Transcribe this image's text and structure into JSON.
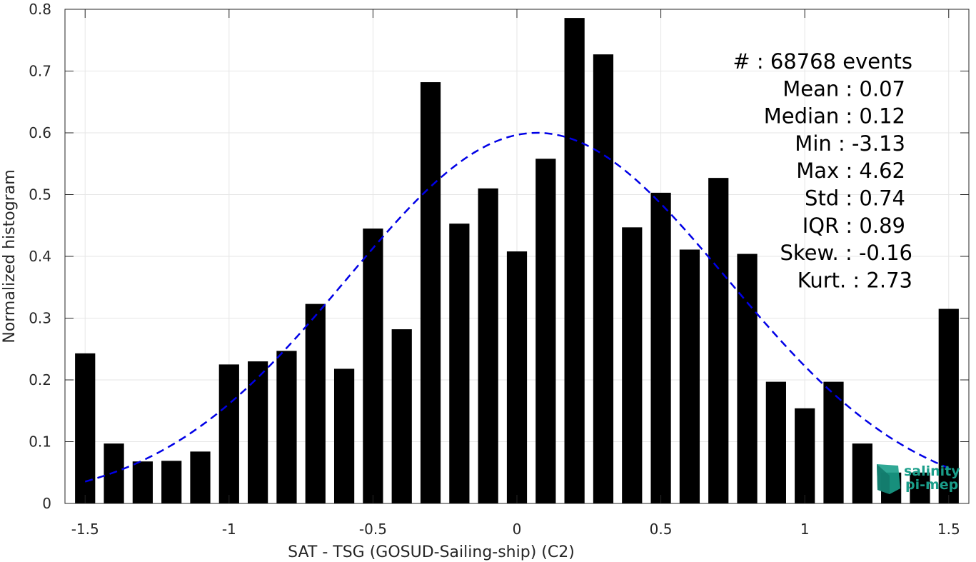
{
  "chart_data": {
    "type": "bar",
    "xlabel": "SAT - TSG (GOSUD-Sailing-ship) (C2)",
    "ylabel": "Normalized histogram",
    "xlim": [
      -1.57,
      1.57
    ],
    "ylim": [
      0,
      0.8
    ],
    "xticks": [
      -1.5,
      -1,
      -0.5,
      0,
      0.5,
      1,
      1.5
    ],
    "xtick_labels": [
      "-1.5",
      "-1",
      "-0.5",
      "0",
      "0.5",
      "1",
      "1.5"
    ],
    "yticks": [
      0,
      0.1,
      0.2,
      0.3,
      0.4,
      0.5,
      0.6,
      0.7,
      0.8
    ],
    "ytick_labels": [
      "0",
      "0.1",
      "0.2",
      "0.3",
      "0.4",
      "0.5",
      "0.6",
      "0.7",
      "0.8"
    ],
    "grid": true,
    "bar_color": "#000000",
    "bins": [
      -1.5,
      -1.4,
      -1.3,
      -1.2,
      -1.1,
      -1.0,
      -0.9,
      -0.8,
      -0.7,
      -0.6,
      -0.5,
      -0.4,
      -0.3,
      -0.2,
      -0.1,
      0.0,
      0.1,
      0.2,
      0.3,
      0.4,
      0.5,
      0.6,
      0.7,
      0.8,
      0.9,
      1.0,
      1.1,
      1.2,
      1.3,
      1.4,
      1.5
    ],
    "values": [
      0.243,
      0.097,
      0.068,
      0.069,
      0.084,
      0.225,
      0.23,
      0.247,
      0.323,
      0.218,
      0.445,
      0.282,
      0.682,
      0.453,
      0.51,
      0.408,
      0.558,
      0.786,
      0.727,
      0.447,
      0.503,
      0.411,
      0.527,
      0.404,
      0.197,
      0.154,
      0.197,
      0.097,
      0.05,
      0.05,
      0.315
    ],
    "fit": {
      "type": "gaussian",
      "style": "dashed",
      "color": "#0000e6",
      "mean": 0.07,
      "std": 0.66,
      "peak": 0.6,
      "x_range": [
        -1.5,
        1.5
      ]
    },
    "stats": [
      "#  : 68768 events",
      "Mean : 0.07",
      "Median : 0.12",
      "Min : -3.13",
      "Max : 4.62",
      "Std : 0.74",
      "IQR : 0.89",
      "Skew. : -0.16",
      "Kurt. : 2.73"
    ]
  },
  "logo": {
    "line1": "salinity",
    "line2": "pi-mep",
    "color": "#1a9e8a"
  }
}
